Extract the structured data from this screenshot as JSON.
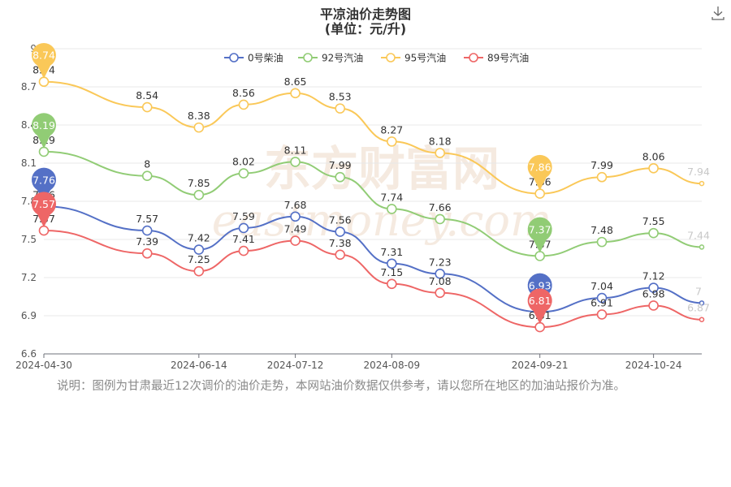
{
  "title": "平凉油价走势图",
  "subtitle": "(单位：元/升)",
  "note": "说明：图例为甘肃最近12次调价的油价走势，本网站油价数据仅供参考，请以您所在地区的加油站报价为准。",
  "watermark": {
    "cn": "东方财富网",
    "en": "eastmoney.com"
  },
  "download_icon": "download-icon",
  "chart_data": {
    "type": "line",
    "smooth": true,
    "ylim": [
      6.6,
      9.0
    ],
    "yticks": [
      "6.6",
      "6.9",
      "7.2",
      "7.5",
      "7.8",
      "8.1",
      "8.4",
      "8.7",
      "9"
    ],
    "xtick_labels": [
      "2024-04-30",
      "2024-06-14",
      "2024-07-12",
      "2024-08-09",
      "2024-09-21",
      "2024-10-24"
    ],
    "x": [
      "2024-04-30",
      "2024-05-30",
      "2024-06-14",
      "2024-06-27",
      "2024-07-12",
      "2024-07-25",
      "2024-08-09",
      "2024-08-23",
      "2024-09-21",
      "2024-10-09",
      "2024-10-24",
      "2024-11-07"
    ],
    "legend_position": "top-center",
    "series": [
      {
        "name": "0号柴油",
        "color": "#5470c6",
        "values": [
          7.76,
          7.57,
          7.42,
          7.59,
          7.68,
          7.56,
          7.31,
          7.23,
          6.93,
          7.04,
          7.12,
          7.0
        ],
        "labels": [
          "7.76",
          "7.57",
          "7.42",
          "7.59",
          "7.68",
          "7.56",
          "7.31",
          "7.23",
          "6.93",
          "7.04",
          "7.12",
          "7"
        ]
      },
      {
        "name": "92号汽油",
        "color": "#91cc75",
        "values": [
          8.19,
          8.0,
          7.85,
          8.02,
          8.11,
          7.99,
          7.74,
          7.66,
          7.37,
          7.48,
          7.55,
          7.44
        ],
        "labels": [
          "8.19",
          "8",
          "7.85",
          "8.02",
          "8.11",
          "7.99",
          "7.74",
          "7.66",
          "7.37",
          "7.48",
          "7.55",
          "7.44"
        ]
      },
      {
        "name": "95号汽油",
        "color": "#fac858",
        "values": [
          8.74,
          8.54,
          8.38,
          8.56,
          8.65,
          8.53,
          8.27,
          8.18,
          7.86,
          7.99,
          8.06,
          7.94
        ],
        "labels": [
          "8.74",
          "8.54",
          "8.38",
          "8.56",
          "8.65",
          "8.53",
          "8.27",
          "8.18",
          "7.86",
          "7.99",
          "8.06",
          "7.94"
        ]
      },
      {
        "name": "89号汽油",
        "color": "#ee6666",
        "values": [
          7.57,
          7.39,
          7.25,
          7.41,
          7.49,
          7.38,
          7.15,
          7.08,
          6.81,
          6.91,
          6.98,
          6.87
        ],
        "labels": [
          "7.57",
          "7.39",
          "7.25",
          "7.41",
          "7.49",
          "7.38",
          "7.15",
          "7.08",
          "6.81",
          "6.91",
          "6.98",
          "6.87"
        ]
      }
    ],
    "max_markers": [
      {
        "series": "0号柴油",
        "index": 0
      },
      {
        "series": "92号汽油",
        "index": 0
      },
      {
        "series": "95号汽油",
        "index": 0
      },
      {
        "series": "89号汽油",
        "index": 0
      }
    ],
    "min_markers": [
      {
        "series": "0号柴油",
        "index": 8
      },
      {
        "series": "92号汽油",
        "index": 8
      },
      {
        "series": "95号汽油",
        "index": 8
      },
      {
        "series": "89号汽油",
        "index": 8
      }
    ]
  }
}
